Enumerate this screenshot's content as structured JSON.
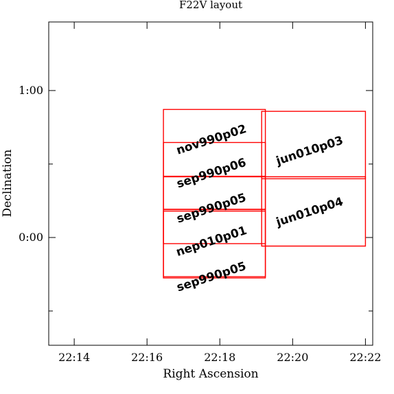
{
  "chart_data": {
    "type": "footprint-layout",
    "title": "F22V layout",
    "xlabel": "Right Ascension",
    "ylabel": "Declination",
    "x_units": "RA minutes after 22h",
    "y_units": "Dec arcmin",
    "xlim": [
      13.3,
      22.2
    ],
    "ylim": [
      -44,
      88
    ],
    "x_reversed": false,
    "x_ticks": [
      {
        "value": 14,
        "label": "22:14"
      },
      {
        "value": 16,
        "label": "22:16"
      },
      {
        "value": 18,
        "label": "22:18"
      },
      {
        "value": 20,
        "label": "22:20"
      },
      {
        "value": 22,
        "label": "22:22"
      }
    ],
    "y_ticks": [
      {
        "value": 0,
        "label": "0:00"
      },
      {
        "value": 60,
        "label": "1:00"
      }
    ],
    "y_minor_ticks": [
      -30,
      30
    ],
    "fields": [
      {
        "label": "nov990p02",
        "corners": [
          [
            16.45,
            52.3
          ],
          [
            19.25,
            52.3
          ],
          [
            19.25,
            25.0
          ],
          [
            16.45,
            25.0
          ]
        ],
        "label_at": [
          17.8,
          38.5
        ],
        "angle": -18
      },
      {
        "label": "sep990p06",
        "corners": [
          [
            16.45,
            38.8
          ],
          [
            19.25,
            38.8
          ],
          [
            19.25,
            11.5
          ],
          [
            16.45,
            11.5
          ]
        ],
        "label_at": [
          17.8,
          24.8
        ],
        "angle": -18
      },
      {
        "label": "sep990p05",
        "corners": [
          [
            16.45,
            24.8
          ],
          [
            19.25,
            24.8
          ],
          [
            19.25,
            -2.5
          ],
          [
            16.45,
            -2.5
          ]
        ],
        "label_at": [
          17.8,
          10.5
        ],
        "angle": -18
      },
      {
        "label": "nep010p01",
        "corners": [
          [
            16.45,
            11.5
          ],
          [
            19.25,
            11.5
          ],
          [
            19.25,
            -16.0
          ],
          [
            16.45,
            -16.0
          ]
        ],
        "label_at": [
          17.8,
          -3.0
        ],
        "angle": -18
      },
      {
        "label": "sep990p05",
        "corners": [
          [
            16.45,
            10.8
          ],
          [
            19.25,
            10.8
          ],
          [
            19.25,
            -16.5
          ],
          [
            16.45,
            -16.5
          ]
        ],
        "label_at": [
          17.8,
          -17.5
        ],
        "angle": -18
      },
      {
        "label": "jun010p03",
        "corners": [
          [
            19.15,
            51.5
          ],
          [
            22.0,
            51.5
          ],
          [
            22.0,
            24.0
          ],
          [
            19.15,
            24.0
          ]
        ],
        "label_at": [
          20.5,
          34.0
        ],
        "angle": -18
      },
      {
        "label": "jun010p04",
        "corners": [
          [
            19.15,
            24.8
          ],
          [
            22.0,
            24.8
          ],
          [
            22.0,
            -3.5
          ],
          [
            19.15,
            -3.5
          ]
        ],
        "label_at": [
          20.5,
          9.0
        ],
        "angle": -18
      }
    ]
  }
}
